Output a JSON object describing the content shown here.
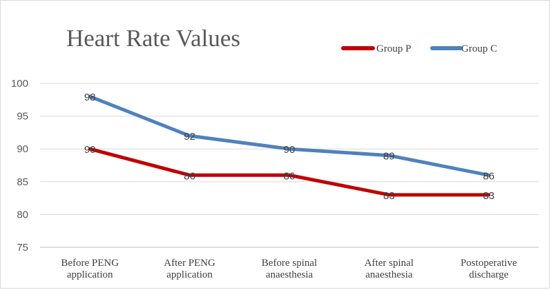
{
  "chart_data": {
    "type": "line",
    "title": "Heart Rate Values",
    "categories": [
      [
        "Before PENG",
        "application"
      ],
      [
        "After PENG",
        "application"
      ],
      [
        "Before spinal",
        "anaesthesia"
      ],
      [
        "After spinal",
        "anaesthesia"
      ],
      [
        "Postoperative",
        "discharge"
      ]
    ],
    "series": [
      {
        "name": "Group P",
        "color": "#c00000",
        "values": [
          90,
          86,
          86,
          83,
          83
        ]
      },
      {
        "name": "Group C",
        "color": "#4f81bd",
        "values": [
          98,
          92,
          90,
          89,
          86
        ]
      }
    ],
    "ylim": [
      75,
      100
    ],
    "yticks": [
      75,
      80,
      85,
      90,
      95,
      100
    ],
    "grid": true,
    "legend_position": "top-right",
    "xlabel": "",
    "ylabel": ""
  }
}
